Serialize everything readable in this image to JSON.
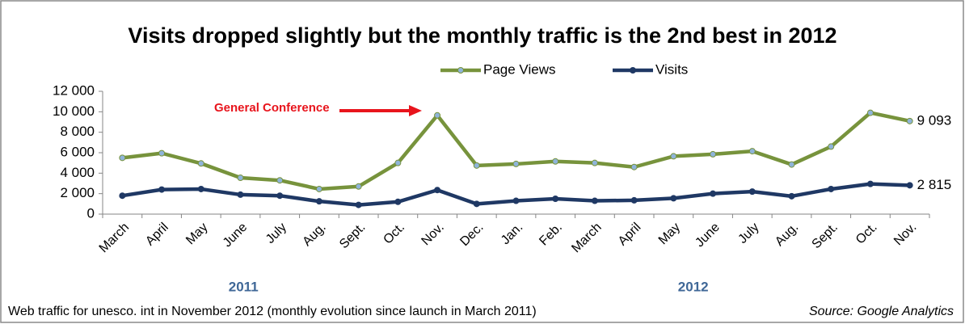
{
  "chart_data": {
    "type": "line",
    "title": "Visits dropped slightly but the monthly traffic is the 2nd best in 2012",
    "categories": [
      "March",
      "April",
      "May",
      "June",
      "July",
      "Aug.",
      "Sept.",
      "Oct.",
      "Nov.",
      "Dec.",
      "Jan.",
      "Feb.",
      "March",
      "April",
      "May",
      "June",
      "July",
      "Aug.",
      "Sept.",
      "Oct.",
      "Nov."
    ],
    "groups": [
      {
        "label": "2011",
        "count": 9
      },
      {
        "label": "2012",
        "count": 12
      }
    ],
    "series": [
      {
        "name": "Page Views",
        "color": "#77933c",
        "marker_color": "#8fb4d9",
        "values": [
          5500,
          5950,
          4950,
          3550,
          3300,
          2450,
          2700,
          5000,
          9650,
          4750,
          4900,
          5150,
          5000,
          4600,
          5650,
          5850,
          6150,
          4850,
          6600,
          9900,
          9093
        ],
        "value_labels": [
          null,
          null,
          null,
          null,
          null,
          null,
          null,
          null,
          null,
          null,
          null,
          null,
          null,
          null,
          null,
          null,
          null,
          null,
          null,
          null,
          "9 093"
        ]
      },
      {
        "name": "Visits",
        "color": "#1f3864",
        "marker_color": "#1f3864",
        "values": [
          1800,
          2400,
          2450,
          1900,
          1800,
          1250,
          900,
          1200,
          2350,
          1000,
          1300,
          1500,
          1300,
          1350,
          1550,
          2000,
          2200,
          1750,
          2450,
          2950,
          2815
        ],
        "value_labels": [
          null,
          null,
          null,
          null,
          null,
          null,
          null,
          null,
          null,
          null,
          null,
          null,
          null,
          null,
          null,
          null,
          null,
          null,
          null,
          null,
          "2 815"
        ]
      }
    ],
    "ylim": [
      0,
      12000
    ],
    "yticks": [
      0,
      {
        "value": 2000,
        "label": "2 000"
      },
      {
        "value": 4000,
        "label": "4 000"
      },
      {
        "value": 6000,
        "label": "6 000"
      },
      {
        "value": 8000,
        "label": "8 000"
      },
      {
        "value": 10000,
        "label": "10 000"
      },
      {
        "value": 12000,
        "label": "12 000"
      }
    ],
    "annotation": "General Conference",
    "footnote": "Web traffic for unesco. int in November 2012 (monthly evolution since launch in March 2011)",
    "source": "Source: Google Analytics"
  }
}
